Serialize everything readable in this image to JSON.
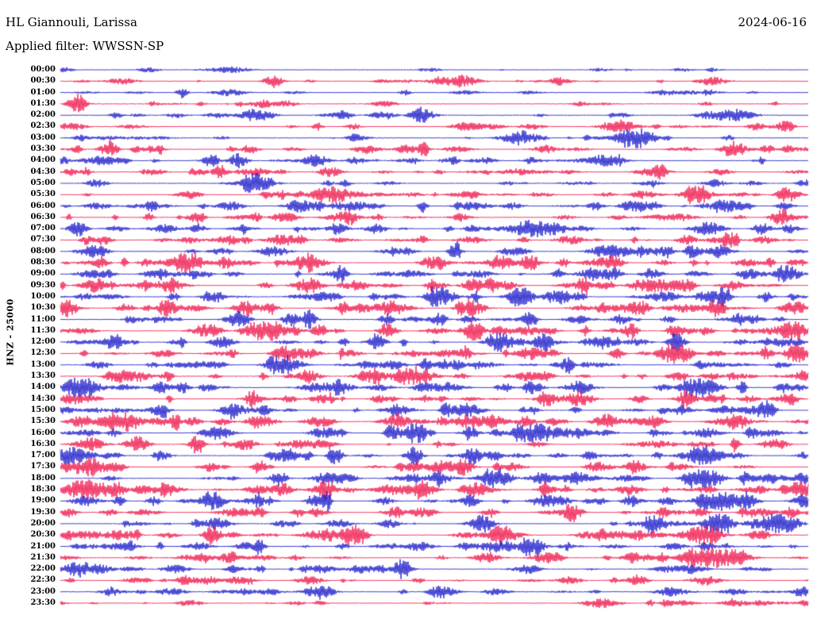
{
  "header": {
    "station": "HL Giannouli, Larissa",
    "date": "2024-06-16",
    "filter": "Applied filter: WWSSN-SP"
  },
  "axis": {
    "left_label": "HNZ - 25000"
  },
  "chart_data": {
    "type": "line",
    "subtype": "helicorder-seismogram",
    "station": "HL Giannouli, Larissa",
    "channel": "HNZ",
    "gain_scale": 25000,
    "date": "2024-06-16",
    "filter": "WWSSN-SP",
    "minutes_per_row": 30,
    "rows_count": 48,
    "legend_position": "none",
    "grid": false,
    "colors": {
      "blue": "#0d0dc6",
      "red": "#ed0840"
    },
    "noise_seed": 20240616,
    "rows": [
      {
        "time": "00:00",
        "color": "blue",
        "activity": 0.55
      },
      {
        "time": "00:30",
        "color": "red",
        "activity": 0.7
      },
      {
        "time": "01:00",
        "color": "blue",
        "activity": 0.7
      },
      {
        "time": "01:30",
        "color": "red",
        "activity": 0.75
      },
      {
        "time": "02:00",
        "color": "blue",
        "activity": 0.8
      },
      {
        "time": "02:30",
        "color": "red",
        "activity": 0.8
      },
      {
        "time": "03:00",
        "color": "blue",
        "activity": 0.9
      },
      {
        "time": "03:30",
        "color": "red",
        "activity": 1.0
      },
      {
        "time": "04:00",
        "color": "blue",
        "activity": 1.0
      },
      {
        "time": "04:30",
        "color": "red",
        "activity": 1.0
      },
      {
        "time": "05:00",
        "color": "blue",
        "activity": 1.0
      },
      {
        "time": "05:30",
        "color": "red",
        "activity": 1.05
      },
      {
        "time": "06:00",
        "color": "blue",
        "activity": 1.1
      },
      {
        "time": "06:30",
        "color": "red",
        "activity": 1.1
      },
      {
        "time": "07:00",
        "color": "blue",
        "activity": 1.2
      },
      {
        "time": "07:30",
        "color": "red",
        "activity": 1.2
      },
      {
        "time": "08:00",
        "color": "blue",
        "activity": 1.3
      },
      {
        "time": "08:30",
        "color": "red",
        "activity": 1.3
      },
      {
        "time": "09:00",
        "color": "blue",
        "activity": 1.3
      },
      {
        "time": "09:30",
        "color": "red",
        "activity": 1.3
      },
      {
        "time": "10:00",
        "color": "blue",
        "activity": 1.3
      },
      {
        "time": "10:30",
        "color": "red",
        "activity": 1.3
      },
      {
        "time": "11:00",
        "color": "blue",
        "activity": 1.3
      },
      {
        "time": "11:30",
        "color": "red",
        "activity": 1.3
      },
      {
        "time": "12:00",
        "color": "blue",
        "activity": 1.3
      },
      {
        "time": "12:30",
        "color": "red",
        "activity": 1.3
      },
      {
        "time": "13:00",
        "color": "blue",
        "activity": 1.3
      },
      {
        "time": "13:30",
        "color": "red",
        "activity": 1.3
      },
      {
        "time": "14:00",
        "color": "blue",
        "activity": 1.3
      },
      {
        "time": "14:30",
        "color": "red",
        "activity": 1.3
      },
      {
        "time": "15:00",
        "color": "blue",
        "activity": 1.3
      },
      {
        "time": "15:30",
        "color": "red",
        "activity": 1.3
      },
      {
        "time": "16:00",
        "color": "blue",
        "activity": 1.3
      },
      {
        "time": "16:30",
        "color": "red",
        "activity": 1.3
      },
      {
        "time": "17:00",
        "color": "blue",
        "activity": 1.3
      },
      {
        "time": "17:30",
        "color": "red",
        "activity": 1.3
      },
      {
        "time": "18:00",
        "color": "blue",
        "activity": 1.3
      },
      {
        "time": "18:30",
        "color": "red",
        "activity": 1.3
      },
      {
        "time": "19:00",
        "color": "blue",
        "activity": 1.3
      },
      {
        "time": "19:30",
        "color": "red",
        "activity": 1.3
      },
      {
        "time": "20:00",
        "color": "blue",
        "activity": 1.3
      },
      {
        "time": "20:30",
        "color": "red",
        "activity": 1.3
      },
      {
        "time": "21:00",
        "color": "blue",
        "activity": 1.15
      },
      {
        "time": "21:30",
        "color": "red",
        "activity": 1.1
      },
      {
        "time": "22:00",
        "color": "blue",
        "activity": 1.0
      },
      {
        "time": "22:30",
        "color": "red",
        "activity": 0.9
      },
      {
        "time": "23:00",
        "color": "blue",
        "activity": 0.85
      },
      {
        "time": "23:30",
        "color": "red",
        "activity": 0.8
      }
    ]
  }
}
